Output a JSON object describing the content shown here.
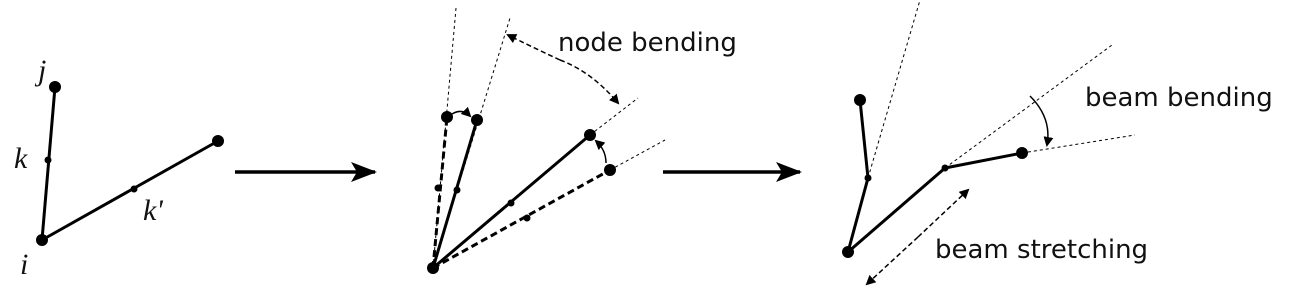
{
  "labels": {
    "j": "j",
    "k": "k",
    "i": "i",
    "k_prime": "k'"
  },
  "annotations": {
    "node_bending": "node bending",
    "beam_bending": "beam bending",
    "beam_stretching": "beam stretching"
  }
}
